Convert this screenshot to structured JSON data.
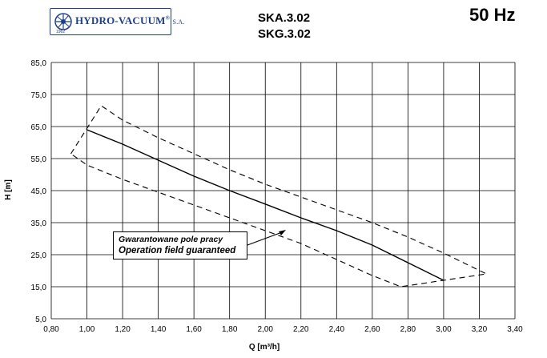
{
  "header": {
    "brand": "HYDRO-VACUUM",
    "brand_mark": "®",
    "brand_suffix": "S.A.",
    "brand_year": "1962",
    "model_line1": "SKA.3.02",
    "model_line2": "SKG.3.02",
    "frequency": "50 Hz"
  },
  "annotation": {
    "line1": "Gwarantowane pole pracy",
    "line2": "Operation field guaranteed"
  },
  "colors": {
    "brand": "#1d3f8a",
    "grid": "#000000",
    "curve": "#000000"
  },
  "chart_data": {
    "type": "line",
    "title": "",
    "xlabel": "Q [m³/h]",
    "ylabel": "H [m]",
    "xlim": [
      0.8,
      3.4
    ],
    "ylim": [
      5.0,
      85.0
    ],
    "x_ticks": [
      "0,80",
      "1,00",
      "1,20",
      "1,40",
      "1,60",
      "1,80",
      "2,00",
      "2,20",
      "2,40",
      "2,60",
      "2,80",
      "3,00",
      "3,20",
      "3,40"
    ],
    "y_ticks": [
      "5,0",
      "15,0",
      "25,0",
      "35,0",
      "45,0",
      "55,0",
      "65,0",
      "75,0",
      "85,0"
    ],
    "grid": true,
    "series": [
      {
        "style": "solid",
        "x": [
          1.0,
          1.2,
          1.4,
          1.6,
          1.8,
          2.0,
          2.2,
          2.4,
          2.6,
          2.8,
          3.0
        ],
        "y": [
          64.0,
          59.5,
          54.5,
          49.5,
          45.0,
          40.8,
          36.5,
          32.5,
          28.0,
          22.5,
          17.0
        ]
      },
      {
        "style": "dashed",
        "x": [
          0.91,
          1.08,
          1.2,
          1.4,
          1.6,
          1.8,
          2.0,
          2.2,
          2.4,
          2.6,
          2.8,
          3.0,
          3.24,
          2.76,
          2.6,
          2.4,
          2.2,
          2.0,
          1.8,
          1.6,
          1.4,
          1.2,
          1.0,
          0.91
        ],
        "y": [
          56.5,
          71.5,
          67.0,
          61.5,
          56.5,
          51.5,
          47.0,
          43.0,
          39.0,
          35.0,
          30.5,
          25.5,
          19.0,
          15.0,
          18.5,
          23.5,
          28.5,
          32.5,
          36.5,
          40.5,
          44.5,
          48.5,
          53.0,
          56.5
        ]
      }
    ]
  }
}
